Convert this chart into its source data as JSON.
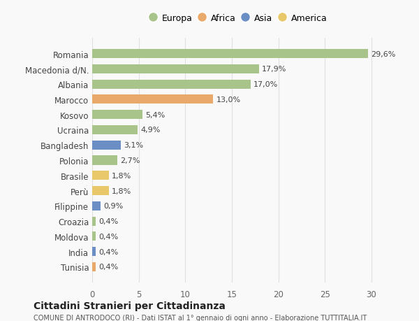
{
  "categories": [
    "Tunisia",
    "India",
    "Moldova",
    "Croazia",
    "Filippine",
    "Perù",
    "Brasile",
    "Polonia",
    "Bangladesh",
    "Ucraina",
    "Kosovo",
    "Marocco",
    "Albania",
    "Macedonia d/N.",
    "Romania"
  ],
  "values": [
    0.4,
    0.4,
    0.4,
    0.4,
    0.9,
    1.8,
    1.8,
    2.7,
    3.1,
    4.9,
    5.4,
    13.0,
    17.0,
    17.9,
    29.6
  ],
  "colors": [
    "#e8a96a",
    "#6b8fc4",
    "#a8c48a",
    "#a8c48a",
    "#6b8fc4",
    "#e8c86a",
    "#e8c86a",
    "#a8c48a",
    "#6b8fc4",
    "#a8c48a",
    "#a8c48a",
    "#e8a96a",
    "#a8c48a",
    "#a8c48a",
    "#a8c48a"
  ],
  "labels": [
    "0,4%",
    "0,4%",
    "0,4%",
    "0,4%",
    "0,9%",
    "1,8%",
    "1,8%",
    "2,7%",
    "3,1%",
    "4,9%",
    "5,4%",
    "13,0%",
    "17,0%",
    "17,9%",
    "29,6%"
  ],
  "legend_items": [
    {
      "label": "Europa",
      "color": "#a8c48a"
    },
    {
      "label": "Africa",
      "color": "#e8a96a"
    },
    {
      "label": "Asia",
      "color": "#6b8fc4"
    },
    {
      "label": "America",
      "color": "#e8c86a"
    }
  ],
  "xlim": [
    0,
    31.5
  ],
  "xticks": [
    0,
    5,
    10,
    15,
    20,
    25,
    30
  ],
  "title": "Cittadini Stranieri per Cittadinanza",
  "subtitle": "COMUNE DI ANTRODOCO (RI) - Dati ISTAT al 1° gennaio di ogni anno - Elaborazione TUTTITALIA.IT",
  "bg_color": "#f9f9f9",
  "grid_color": "#e0e0e0",
  "bar_height": 0.6
}
